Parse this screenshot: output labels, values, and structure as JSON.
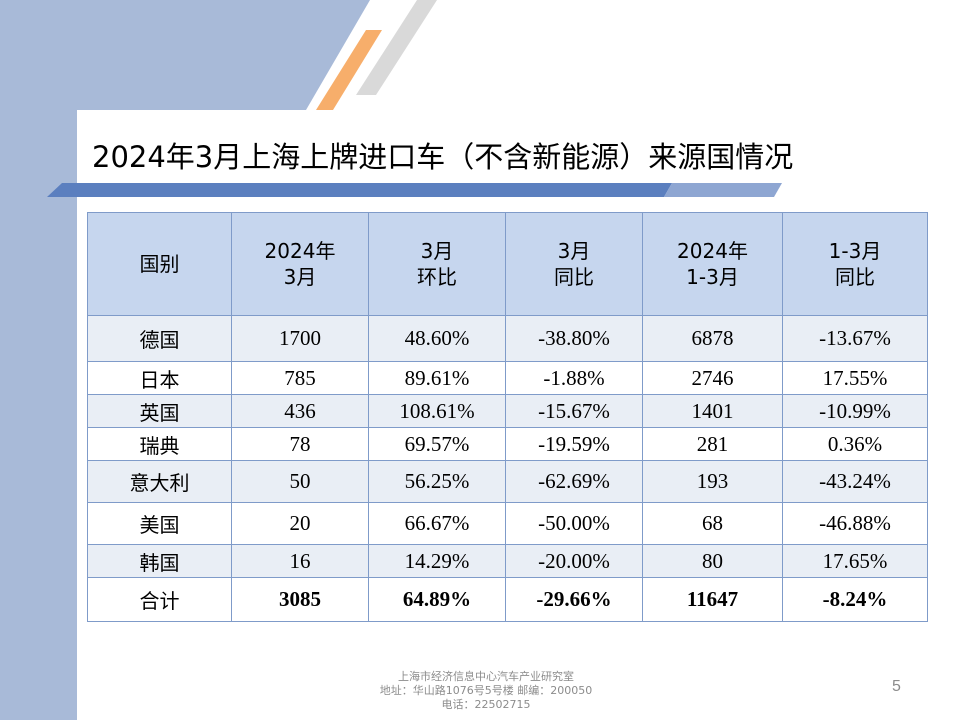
{
  "title": "2024年3月上海上牌进口车（不含新能源）来源国情况",
  "table": {
    "headers": [
      [
        "国别"
      ],
      [
        "2024年",
        "3月"
      ],
      [
        "3月",
        "环比"
      ],
      [
        "3月",
        "同比"
      ],
      [
        "2024年",
        "1-3月"
      ],
      [
        "1-3月",
        "同比"
      ]
    ],
    "rows": [
      [
        "德国",
        "1700",
        "48.60%",
        "-38.80%",
        "6878",
        "-13.67%"
      ],
      [
        "日本",
        "785",
        "89.61%",
        "-1.88%",
        "2746",
        "17.55%"
      ],
      [
        "英国",
        "436",
        "108.61%",
        "-15.67%",
        "1401",
        "-10.99%"
      ],
      [
        "瑞典",
        "78",
        "69.57%",
        "-19.59%",
        "281",
        "0.36%"
      ],
      [
        "意大利",
        "50",
        "56.25%",
        "-62.69%",
        "193",
        "-43.24%"
      ],
      [
        "美国",
        "20",
        "66.67%",
        "-50.00%",
        "68",
        "-46.88%"
      ],
      [
        "韩国",
        "16",
        "14.29%",
        "-20.00%",
        "80",
        "17.65%"
      ]
    ],
    "total": [
      "合计",
      "3085",
      "64.89%",
      "-29.66%",
      "11647",
      "-8.24%"
    ]
  },
  "footer": {
    "line1": "上海市经济信息中心汽车产业研究室",
    "line2": "地址：华山路1076号5号楼   邮编：200050",
    "line3": "电话：22502715"
  },
  "page_number": "5",
  "colors": {
    "band": "#a8bad8",
    "accent_orange": "#f7ae6b",
    "title_bar": "#5b7fbf",
    "header_fill": "#c6d6ee",
    "row_fill": "#e9eef5",
    "border": "#7f9bc9"
  }
}
